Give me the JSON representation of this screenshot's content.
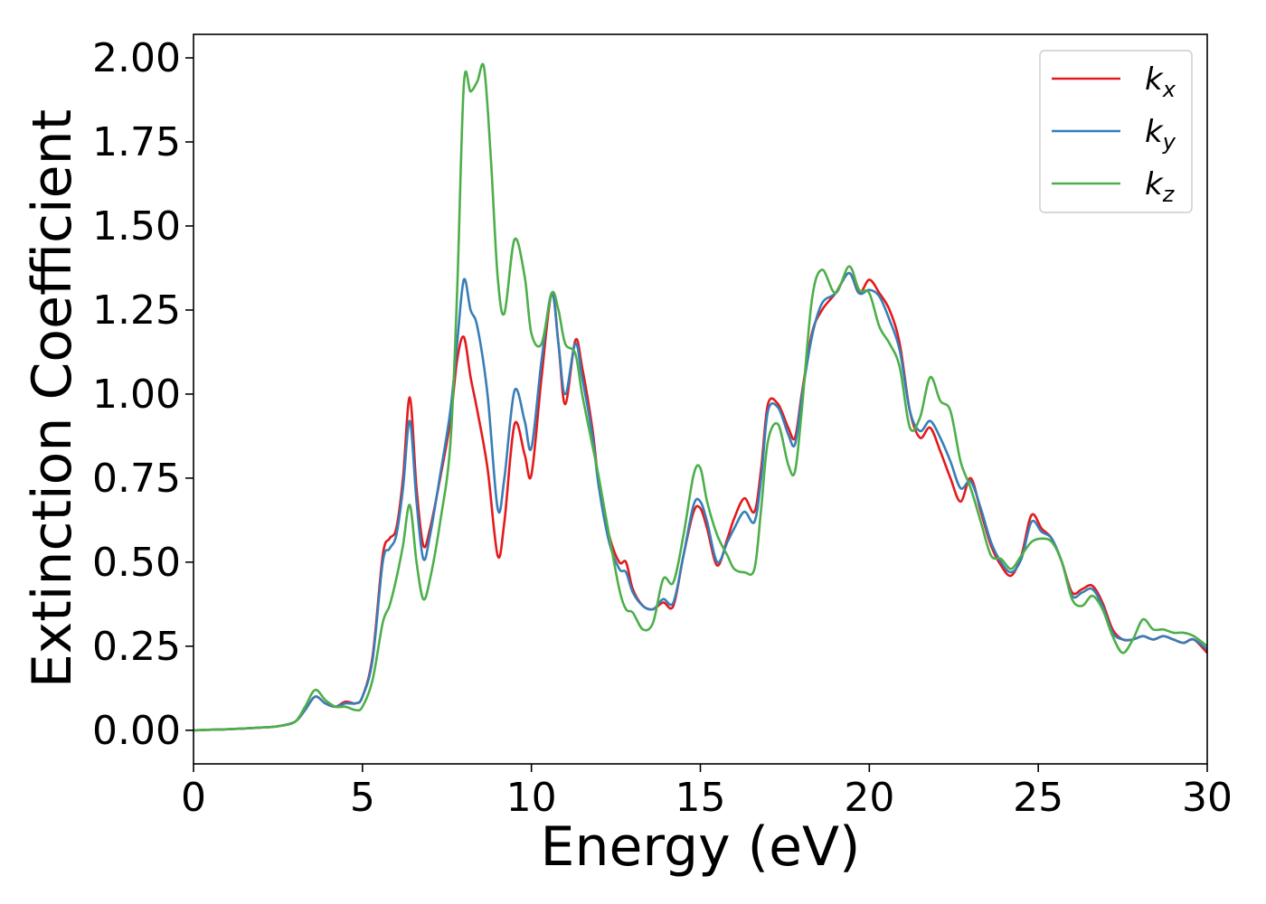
{
  "chart_data": {
    "type": "line",
    "title": "",
    "xlabel": "Energy (eV)",
    "ylabel": "Extinction Coefficient",
    "xlim": [
      0,
      30
    ],
    "ylim": [
      -0.1,
      2.07
    ],
    "x_ticks": [
      "0",
      "5",
      "10",
      "15",
      "20",
      "25",
      "30"
    ],
    "x_tick_values": [
      0,
      5,
      10,
      15,
      20,
      25,
      30
    ],
    "y_ticks": [
      "0.00",
      "0.25",
      "0.50",
      "0.75",
      "1.00",
      "1.25",
      "1.50",
      "1.75",
      "2.00"
    ],
    "y_tick_values": [
      0,
      0.25,
      0.5,
      0.75,
      1.0,
      1.25,
      1.5,
      1.75,
      2.0
    ],
    "grid": false,
    "legend_position": "top-right",
    "series": [
      {
        "name": "k_x",
        "label_base": "k",
        "label_sub": "x",
        "color": "#e41a1c",
        "x": [
          0,
          1,
          2,
          2.5,
          3,
          3.3,
          3.6,
          3.9,
          4.2,
          4.5,
          4.8,
          5.0,
          5.3,
          5.6,
          5.8,
          6.0,
          6.2,
          6.4,
          6.6,
          6.8,
          7.0,
          7.3,
          7.6,
          7.8,
          8.0,
          8.2,
          8.4,
          8.7,
          9.0,
          9.2,
          9.5,
          9.8,
          10.0,
          10.3,
          10.6,
          10.8,
          11.0,
          11.3,
          11.5,
          11.8,
          12.0,
          12.3,
          12.6,
          12.8,
          13.0,
          13.3,
          13.6,
          13.9,
          14.2,
          14.5,
          14.8,
          15.0,
          15.2,
          15.5,
          15.8,
          16.0,
          16.3,
          16.6,
          16.8,
          17.0,
          17.3,
          17.6,
          17.8,
          18.0,
          18.3,
          18.6,
          19.0,
          19.4,
          19.7,
          20.0,
          20.3,
          20.6,
          20.9,
          21.2,
          21.5,
          21.8,
          22.1,
          22.4,
          22.7,
          23.0,
          23.3,
          23.6,
          23.9,
          24.2,
          24.5,
          24.8,
          25.1,
          25.4,
          25.7,
          26.0,
          26.3,
          26.6,
          26.9,
          27.2,
          27.5,
          27.8,
          28.1,
          28.4,
          28.7,
          29.0,
          29.3,
          29.6,
          30.0
        ],
        "y": [
          0,
          0.003,
          0.008,
          0.012,
          0.025,
          0.06,
          0.1,
          0.08,
          0.07,
          0.085,
          0.08,
          0.1,
          0.22,
          0.52,
          0.57,
          0.6,
          0.75,
          0.99,
          0.72,
          0.55,
          0.6,
          0.75,
          0.92,
          1.1,
          1.17,
          1.05,
          0.95,
          0.78,
          0.52,
          0.62,
          0.91,
          0.82,
          0.76,
          1.05,
          1.3,
          1.15,
          0.97,
          1.16,
          1.08,
          0.9,
          0.73,
          0.58,
          0.5,
          0.5,
          0.42,
          0.37,
          0.36,
          0.38,
          0.37,
          0.52,
          0.65,
          0.66,
          0.6,
          0.49,
          0.57,
          0.63,
          0.69,
          0.65,
          0.78,
          0.97,
          0.97,
          0.9,
          0.87,
          1.0,
          1.18,
          1.25,
          1.3,
          1.36,
          1.3,
          1.34,
          1.3,
          1.25,
          1.15,
          0.95,
          0.87,
          0.9,
          0.83,
          0.75,
          0.68,
          0.75,
          0.65,
          0.55,
          0.49,
          0.46,
          0.52,
          0.64,
          0.6,
          0.57,
          0.5,
          0.41,
          0.42,
          0.43,
          0.38,
          0.3,
          0.27,
          0.27,
          0.28,
          0.27,
          0.28,
          0.27,
          0.26,
          0.27,
          0.23
        ]
      },
      {
        "name": "k_y",
        "label_base": "k",
        "label_sub": "y",
        "color": "#377eb8",
        "x": [
          0,
          1,
          2,
          2.5,
          3,
          3.3,
          3.6,
          3.9,
          4.2,
          4.5,
          4.8,
          5.0,
          5.3,
          5.6,
          5.8,
          6.0,
          6.2,
          6.4,
          6.6,
          6.8,
          7.0,
          7.3,
          7.6,
          7.8,
          8.0,
          8.2,
          8.4,
          8.7,
          9.0,
          9.2,
          9.5,
          9.8,
          10.0,
          10.3,
          10.6,
          10.8,
          11.0,
          11.3,
          11.5,
          11.8,
          12.0,
          12.3,
          12.6,
          12.8,
          13.0,
          13.3,
          13.6,
          13.9,
          14.2,
          14.5,
          14.8,
          15.0,
          15.2,
          15.5,
          15.8,
          16.0,
          16.3,
          16.6,
          16.8,
          17.0,
          17.3,
          17.6,
          17.8,
          18.0,
          18.3,
          18.6,
          19.0,
          19.4,
          19.7,
          20.0,
          20.3,
          20.6,
          20.9,
          21.2,
          21.5,
          21.8,
          22.1,
          22.4,
          22.7,
          23.0,
          23.3,
          23.6,
          23.9,
          24.2,
          24.5,
          24.8,
          25.1,
          25.4,
          25.7,
          26.0,
          26.3,
          26.6,
          26.9,
          27.2,
          27.5,
          27.8,
          28.1,
          28.4,
          28.7,
          29.0,
          29.3,
          29.6,
          30.0
        ],
        "y": [
          0,
          0.003,
          0.008,
          0.012,
          0.025,
          0.06,
          0.1,
          0.08,
          0.07,
          0.08,
          0.08,
          0.1,
          0.21,
          0.5,
          0.54,
          0.58,
          0.72,
          0.92,
          0.68,
          0.51,
          0.58,
          0.76,
          0.95,
          1.15,
          1.34,
          1.25,
          1.2,
          1.0,
          0.66,
          0.75,
          1.01,
          0.92,
          0.84,
          1.1,
          1.3,
          1.15,
          1.0,
          1.15,
          1.05,
          0.88,
          0.72,
          0.56,
          0.48,
          0.47,
          0.41,
          0.37,
          0.36,
          0.39,
          0.38,
          0.52,
          0.67,
          0.68,
          0.62,
          0.5,
          0.56,
          0.6,
          0.65,
          0.62,
          0.75,
          0.95,
          0.96,
          0.88,
          0.85,
          0.99,
          1.17,
          1.27,
          1.3,
          1.36,
          1.3,
          1.31,
          1.29,
          1.22,
          1.13,
          0.95,
          0.89,
          0.92,
          0.87,
          0.8,
          0.72,
          0.74,
          0.66,
          0.56,
          0.5,
          0.47,
          0.51,
          0.62,
          0.59,
          0.57,
          0.5,
          0.4,
          0.41,
          0.42,
          0.37,
          0.29,
          0.27,
          0.27,
          0.28,
          0.27,
          0.28,
          0.27,
          0.26,
          0.27,
          0.24
        ]
      },
      {
        "name": "k_z",
        "label_base": "k",
        "label_sub": "z",
        "color": "#4daf4a",
        "x": [
          0,
          1,
          2,
          2.5,
          3,
          3.3,
          3.6,
          3.9,
          4.2,
          4.5,
          4.8,
          5.0,
          5.3,
          5.6,
          5.8,
          6.0,
          6.2,
          6.4,
          6.6,
          6.8,
          7.0,
          7.3,
          7.6,
          7.8,
          8.0,
          8.2,
          8.4,
          8.6,
          8.8,
          9.0,
          9.2,
          9.5,
          9.8,
          10.0,
          10.3,
          10.6,
          10.8,
          11.0,
          11.3,
          11.5,
          11.8,
          12.0,
          12.3,
          12.6,
          12.8,
          13.0,
          13.3,
          13.6,
          13.9,
          14.2,
          14.5,
          14.8,
          15.0,
          15.2,
          15.5,
          15.8,
          16.0,
          16.3,
          16.6,
          16.8,
          17.0,
          17.3,
          17.6,
          17.8,
          18.0,
          18.3,
          18.6,
          19.0,
          19.4,
          19.7,
          20.0,
          20.3,
          20.6,
          20.9,
          21.2,
          21.5,
          21.8,
          22.1,
          22.4,
          22.7,
          23.0,
          23.3,
          23.6,
          23.9,
          24.2,
          24.5,
          24.8,
          25.1,
          25.4,
          25.7,
          26.0,
          26.3,
          26.6,
          26.9,
          27.2,
          27.5,
          27.8,
          28.1,
          28.4,
          28.7,
          29.0,
          29.3,
          29.6,
          30.0
        ],
        "y": [
          0,
          0.003,
          0.008,
          0.012,
          0.025,
          0.07,
          0.12,
          0.09,
          0.07,
          0.07,
          0.06,
          0.07,
          0.15,
          0.32,
          0.37,
          0.45,
          0.55,
          0.67,
          0.5,
          0.39,
          0.45,
          0.62,
          0.85,
          1.3,
          1.92,
          1.9,
          1.93,
          1.97,
          1.7,
          1.35,
          1.24,
          1.46,
          1.35,
          1.18,
          1.15,
          1.3,
          1.25,
          1.15,
          1.12,
          1.0,
          0.85,
          0.75,
          0.58,
          0.42,
          0.36,
          0.35,
          0.3,
          0.32,
          0.45,
          0.44,
          0.58,
          0.76,
          0.78,
          0.68,
          0.58,
          0.52,
          0.48,
          0.47,
          0.48,
          0.66,
          0.86,
          0.91,
          0.79,
          0.77,
          0.95,
          1.28,
          1.37,
          1.3,
          1.38,
          1.31,
          1.3,
          1.2,
          1.15,
          1.08,
          0.9,
          0.93,
          1.05,
          0.98,
          0.95,
          0.8,
          0.72,
          0.62,
          0.52,
          0.51,
          0.48,
          0.52,
          0.56,
          0.57,
          0.56,
          0.5,
          0.39,
          0.37,
          0.4,
          0.36,
          0.28,
          0.23,
          0.27,
          0.33,
          0.3,
          0.3,
          0.29,
          0.29,
          0.28,
          0.25
        ]
      }
    ]
  }
}
